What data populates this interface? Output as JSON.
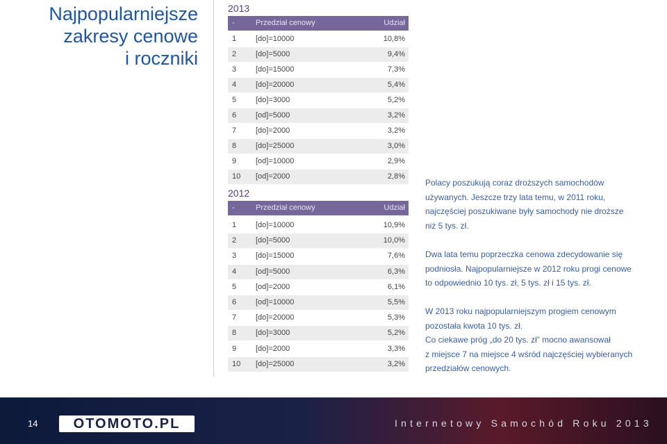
{
  "title": [
    "Najpopularniejsze",
    "zakresy cenowe",
    "i roczniki"
  ],
  "tables": [
    {
      "year": "2013",
      "header": [
        "-",
        "Przedział cenowy",
        "Udział"
      ],
      "rows": [
        [
          "1",
          "[do]=10000",
          "10,8%"
        ],
        [
          "2",
          "[do]=5000",
          "9,4%"
        ],
        [
          "3",
          "[do]=15000",
          "7,3%"
        ],
        [
          "4",
          "[do]=20000",
          "5,4%"
        ],
        [
          "5",
          "[do]=3000",
          "5,2%"
        ],
        [
          "6",
          "[od]=5000",
          "3,2%"
        ],
        [
          "7",
          "[do]=2000",
          "3,2%"
        ],
        [
          "8",
          "[do]=25000",
          "3,0%"
        ],
        [
          "9",
          "[od]=10000",
          "2,9%"
        ],
        [
          "10",
          "[od]=2000",
          "2,8%"
        ]
      ]
    },
    {
      "year": "2012",
      "header": [
        "-",
        "Przedział cenowy",
        "Udział"
      ],
      "rows": [
        [
          "1",
          "[do]=10000",
          "10,9%"
        ],
        [
          "2",
          "[do]=5000",
          "10,0%"
        ],
        [
          "3",
          "[do]=15000",
          "7,6%"
        ],
        [
          "4",
          "[od]=5000",
          "6,3%"
        ],
        [
          "5",
          "[od]=2000",
          "6,1%"
        ],
        [
          "6",
          "[od]=10000",
          "5,5%"
        ],
        [
          "7",
          "[do]=20000",
          "5,3%"
        ],
        [
          "8",
          "[do]=3000",
          "5,2%"
        ],
        [
          "9",
          "[do]=2000",
          "3,3%"
        ],
        [
          "10",
          "[do]=25000",
          "3,2%"
        ]
      ]
    }
  ],
  "paragraphs": [
    [
      "Polacy poszukują coraz droższych samochodów",
      "używanych. Jeszcze trzy lata temu, w 2011 roku,",
      "najczęściej poszukiwane były samochody nie droższe",
      "niż 5 tys. zł."
    ],
    [
      "Dwa lata temu poprzeczka cenowa zdecydowanie się",
      "podniosła. Najpopularniejsze w 2012 roku progi cenowe",
      "to odpowiednio 10 tys. zł, 5 tys. zł i 15 tys. zł."
    ],
    [
      "W 2013 roku najpopularniejszym progiem cenowym",
      "pozostała kwota 10 tys. zł.",
      "Co ciekawe próg „do 20 tys. zł” mocno awansował",
      "z miejsce 7 na miejsce 4 wśród najczęściej wybieranych",
      "przedziałów cenowych."
    ]
  ],
  "footer": {
    "page": "14",
    "logo": "OTOMOTO.PL",
    "caption": "Internetowy Samochód Roku 2013"
  }
}
